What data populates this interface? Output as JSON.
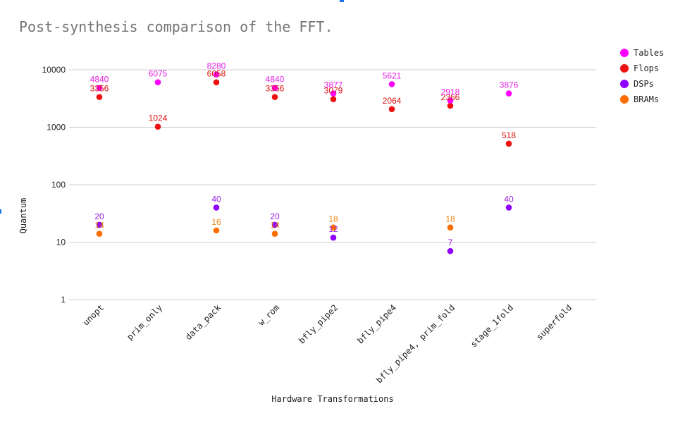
{
  "chart_data": {
    "type": "scatter",
    "title": "Post-synthesis comparison of the FFT.",
    "xlabel": "Hardware Transformations",
    "ylabel": "Quantum",
    "yscale": "log",
    "ylim": [
      1,
      10000
    ],
    "yticks": [
      {
        "value": 1,
        "label": "1"
      },
      {
        "value": 10,
        "label": "10"
      },
      {
        "value": 100,
        "label": "100"
      },
      {
        "value": 1000,
        "label": "1000"
      },
      {
        "value": 10000,
        "label": "10000"
      }
    ],
    "grid": true,
    "legend_position": "right",
    "categories": [
      "unopt",
      "prim_only",
      "data_pack",
      "w_rom",
      "bfly_pipe2",
      "bfly_pipe4",
      "bfly_pipe4, prim_fold",
      "stage_1fold",
      "superfold"
    ],
    "series": [
      {
        "name": "Tables",
        "color": "#ff00ff",
        "label_color": "#e61ee6",
        "values": [
          4840,
          6075,
          8280,
          4840,
          3877,
          5621,
          2918,
          3876,
          null
        ],
        "labels": [
          "4840",
          "6075",
          "8280",
          "4840",
          "3877",
          "5621",
          "2918",
          "3876",
          ""
        ]
      },
      {
        "name": "Flops",
        "color": "#ee1111",
        "label_color": "#dd1111",
        "values": [
          3356,
          1024,
          6058,
          3356,
          3079,
          2064,
          2366,
          518,
          null
        ],
        "labels": [
          "3356",
          "1024",
          "6058",
          "3356",
          "3079",
          "2064",
          "2366",
          "518",
          ""
        ]
      },
      {
        "name": "DSPs",
        "color": "#8f00ff",
        "label_color": "#9a1fe6",
        "values": [
          20,
          null,
          40,
          20,
          12,
          null,
          7,
          40,
          null
        ],
        "labels": [
          "20",
          "",
          "40",
          "20",
          "12",
          "",
          "7",
          "40",
          ""
        ]
      },
      {
        "name": "BRAMs",
        "color": "#ff6d00",
        "label_color": "#e8830f",
        "values": [
          14,
          null,
          16,
          14,
          18,
          null,
          18,
          null,
          null
        ],
        "labels": [
          "14",
          "",
          "16",
          "14",
          "18",
          "",
          "18",
          "",
          ""
        ]
      }
    ]
  }
}
